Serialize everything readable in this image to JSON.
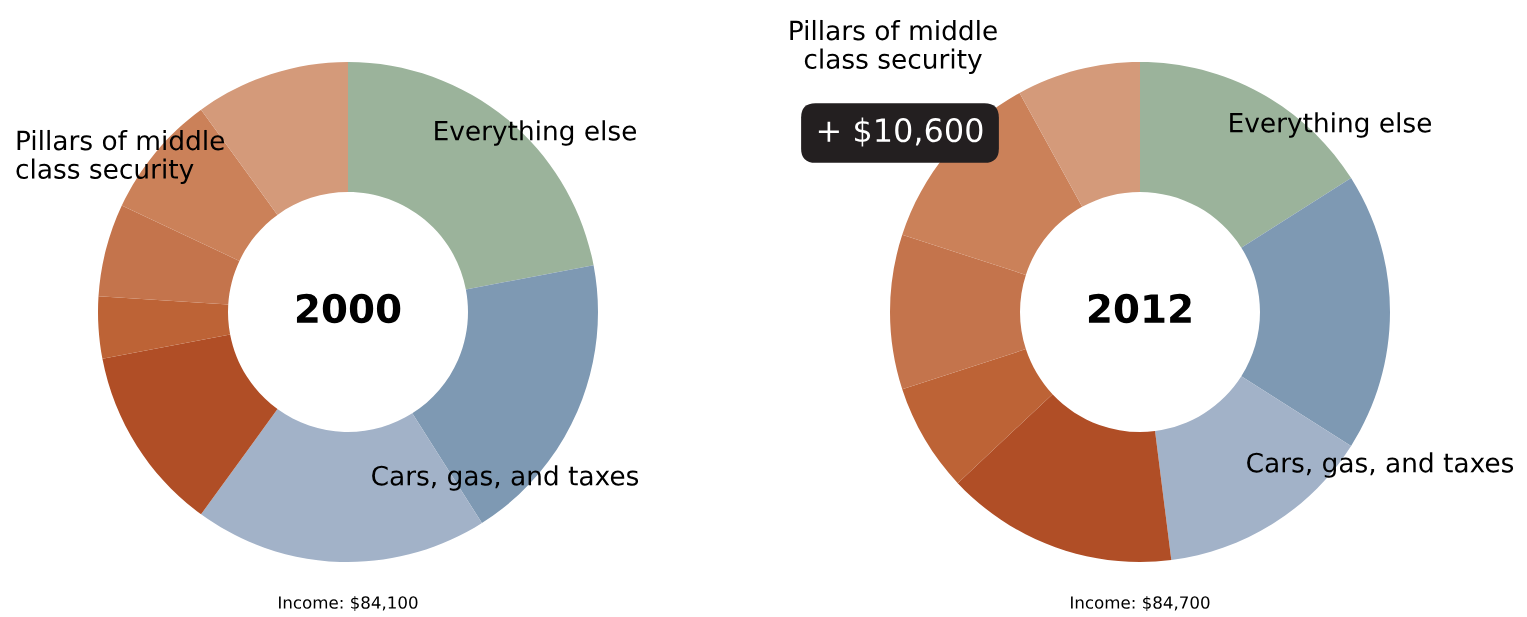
{
  "chart_data": [
    {
      "type": "donut",
      "title": "2000",
      "categories": [
        null,
        null,
        null,
        null,
        null,
        null,
        null,
        null
      ],
      "values": [
        22,
        19,
        19,
        12,
        4,
        6,
        8,
        10
      ],
      "colors": [
        "#9bb39b",
        "#7e99b3",
        "#a2b2c8",
        "#b04e26",
        "#bd6336",
        "#c4744c",
        "#cb8159",
        "#d49a7a"
      ],
      "legend": false,
      "annotations": [
        "Everything else",
        "Cars, gas, and taxes",
        "Pillars of middle\nclass security",
        "Income: $84,100"
      ]
    },
    {
      "type": "donut",
      "title": "2012",
      "categories": [
        null,
        null,
        null,
        null,
        null,
        null,
        null,
        null
      ],
      "values": [
        16,
        18,
        14,
        15,
        7,
        10,
        12,
        8
      ],
      "colors": [
        "#9bb39b",
        "#7e99b3",
        "#a2b2c8",
        "#b04e26",
        "#bd6336",
        "#c4744c",
        "#cb8159",
        "#d49a7a"
      ],
      "legend": false,
      "annotations": [
        "Everything else",
        "Cars, gas, and taxes",
        "Pillars of middle\nclass security",
        "Income: $84,700",
        "+ $10,600"
      ]
    }
  ]
}
